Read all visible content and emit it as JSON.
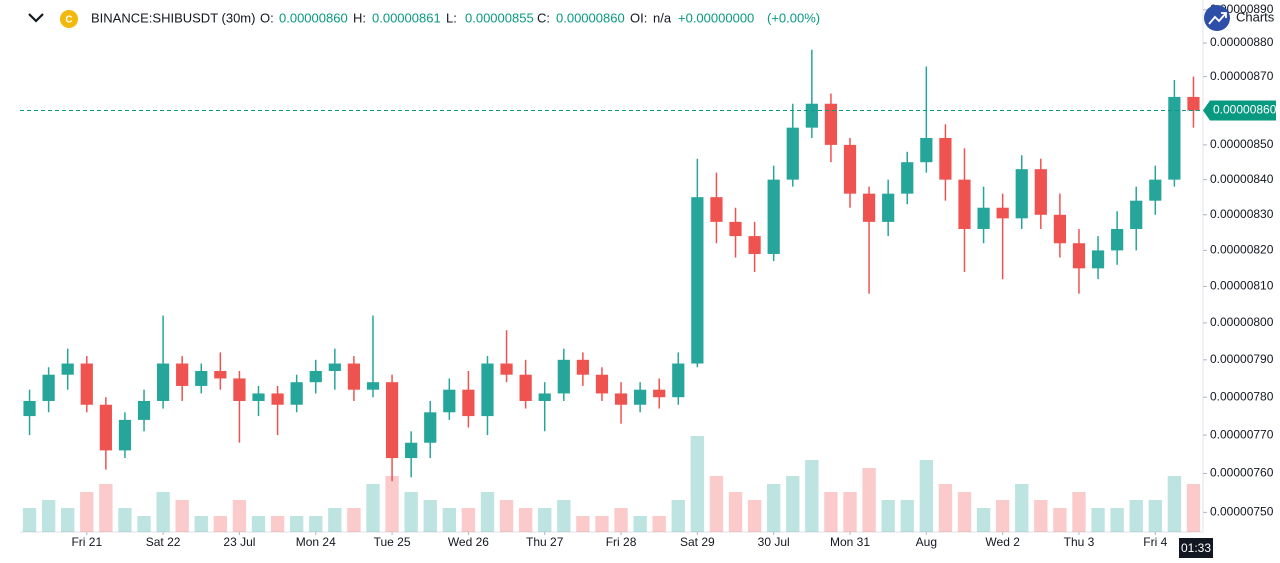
{
  "header": {
    "symbol": "BINANCE:SHIBUSDT (30m)",
    "fields": [
      {
        "key": "O:",
        "value": "0.00000860"
      },
      {
        "key": "H:",
        "value": "0.00000861"
      },
      {
        "key": "L:",
        "value": "0.00000855"
      },
      {
        "key": "C:",
        "value": "0.00000860"
      }
    ],
    "oi_label": "OI:",
    "oi": "n/a",
    "change": "+0.00000000",
    "change_pct": "(+0.00%)",
    "brand": "Charts",
    "time": "01:33"
  },
  "chart_data": {
    "type": "candlestick",
    "log_scale": true,
    "up_color": "#26a69a",
    "down_color": "#ef5350",
    "categories": [
      null,
      null,
      null,
      "Fri 21",
      null,
      null,
      null,
      "Sat 22",
      null,
      null,
      null,
      "23 Jul",
      null,
      null,
      null,
      "Mon 24",
      null,
      null,
      null,
      "Tue 25",
      null,
      null,
      null,
      "Wed 26",
      null,
      null,
      null,
      "Thu 27",
      null,
      null,
      null,
      "Fri 28",
      null,
      null,
      null,
      "Sat 29",
      null,
      null,
      null,
      "30 Jul",
      null,
      null,
      null,
      "Mon 31",
      null,
      null,
      null,
      "Aug",
      null,
      null,
      null,
      "Wed 2",
      null,
      null,
      null,
      "Thu 3",
      null,
      null,
      null,
      "Fri 4",
      null,
      null
    ],
    "ohlc": [
      [
        7.75e-06,
        7.82e-06,
        7.7e-06,
        7.79e-06
      ],
      [
        7.79e-06,
        7.88e-06,
        7.76e-06,
        7.86e-06
      ],
      [
        7.86e-06,
        7.93e-06,
        7.82e-06,
        7.89e-06
      ],
      [
        7.89e-06,
        7.91e-06,
        7.76e-06,
        7.78e-06
      ],
      [
        7.78e-06,
        7.8e-06,
        7.61e-06,
        7.66e-06
      ],
      [
        7.66e-06,
        7.76e-06,
        7.64e-06,
        7.74e-06
      ],
      [
        7.74e-06,
        7.82e-06,
        7.71e-06,
        7.79e-06
      ],
      [
        7.79e-06,
        8.02e-06,
        7.77e-06,
        7.89e-06
      ],
      [
        7.89e-06,
        7.91e-06,
        7.79e-06,
        7.83e-06
      ],
      [
        7.83e-06,
        7.89e-06,
        7.81e-06,
        7.87e-06
      ],
      [
        7.87e-06,
        7.92e-06,
        7.82e-06,
        7.85e-06
      ],
      [
        7.85e-06,
        7.87e-06,
        7.68e-06,
        7.79e-06
      ],
      [
        7.79e-06,
        7.83e-06,
        7.75e-06,
        7.81e-06
      ],
      [
        7.81e-06,
        7.83e-06,
        7.7e-06,
        7.78e-06
      ],
      [
        7.78e-06,
        7.86e-06,
        7.76e-06,
        7.84e-06
      ],
      [
        7.84e-06,
        7.9e-06,
        7.81e-06,
        7.87e-06
      ],
      [
        7.87e-06,
        7.93e-06,
        7.82e-06,
        7.89e-06
      ],
      [
        7.89e-06,
        7.91e-06,
        7.79e-06,
        7.82e-06
      ],
      [
        7.82e-06,
        8.02e-06,
        7.8e-06,
        7.84e-06
      ],
      [
        7.84e-06,
        7.86e-06,
        7.58e-06,
        7.64e-06
      ],
      [
        7.64e-06,
        7.71e-06,
        7.59e-06,
        7.68e-06
      ],
      [
        7.68e-06,
        7.79e-06,
        7.64e-06,
        7.76e-06
      ],
      [
        7.76e-06,
        7.85e-06,
        7.74e-06,
        7.82e-06
      ],
      [
        7.82e-06,
        7.87e-06,
        7.72e-06,
        7.75e-06
      ],
      [
        7.75e-06,
        7.91e-06,
        7.7e-06,
        7.89e-06
      ],
      [
        7.89e-06,
        7.98e-06,
        7.84e-06,
        7.86e-06
      ],
      [
        7.86e-06,
        7.9e-06,
        7.77e-06,
        7.79e-06
      ],
      [
        7.79e-06,
        7.84e-06,
        7.71e-06,
        7.81e-06
      ],
      [
        7.81e-06,
        7.93e-06,
        7.79e-06,
        7.9e-06
      ],
      [
        7.9e-06,
        7.92e-06,
        7.83e-06,
        7.86e-06
      ],
      [
        7.86e-06,
        7.88e-06,
        7.79e-06,
        7.81e-06
      ],
      [
        7.81e-06,
        7.84e-06,
        7.73e-06,
        7.78e-06
      ],
      [
        7.78e-06,
        7.84e-06,
        7.76e-06,
        7.82e-06
      ],
      [
        7.82e-06,
        7.85e-06,
        7.77e-06,
        7.8e-06
      ],
      [
        7.8e-06,
        7.92e-06,
        7.78e-06,
        7.89e-06
      ],
      [
        7.89e-06,
        8.46e-06,
        7.88e-06,
        8.35e-06
      ],
      [
        8.35e-06,
        8.42e-06,
        8.22e-06,
        8.28e-06
      ],
      [
        8.28e-06,
        8.32e-06,
        8.18e-06,
        8.24e-06
      ],
      [
        8.24e-06,
        8.28e-06,
        8.14e-06,
        8.19e-06
      ],
      [
        8.19e-06,
        8.44e-06,
        8.17e-06,
        8.4e-06
      ],
      [
        8.4e-06,
        8.62e-06,
        8.38e-06,
        8.55e-06
      ],
      [
        8.55e-06,
        8.78e-06,
        8.52e-06,
        8.62e-06
      ],
      [
        8.62e-06,
        8.65e-06,
        8.45e-06,
        8.5e-06
      ],
      [
        8.5e-06,
        8.52e-06,
        8.32e-06,
        8.36e-06
      ],
      [
        8.36e-06,
        8.38e-06,
        8.08e-06,
        8.28e-06
      ],
      [
        8.28e-06,
        8.4e-06,
        8.24e-06,
        8.36e-06
      ],
      [
        8.36e-06,
        8.48e-06,
        8.33e-06,
        8.45e-06
      ],
      [
        8.45e-06,
        8.73e-06,
        8.42e-06,
        8.52e-06
      ],
      [
        8.52e-06,
        8.56e-06,
        8.34e-06,
        8.4e-06
      ],
      [
        8.4e-06,
        8.49e-06,
        8.14e-06,
        8.26e-06
      ],
      [
        8.26e-06,
        8.38e-06,
        8.22e-06,
        8.32e-06
      ],
      [
        8.32e-06,
        8.36e-06,
        8.12e-06,
        8.29e-06
      ],
      [
        8.29e-06,
        8.47e-06,
        8.26e-06,
        8.43e-06
      ],
      [
        8.43e-06,
        8.46e-06,
        8.26e-06,
        8.3e-06
      ],
      [
        8.3e-06,
        8.36e-06,
        8.18e-06,
        8.22e-06
      ],
      [
        8.22e-06,
        8.26e-06,
        8.08e-06,
        8.15e-06
      ],
      [
        8.15e-06,
        8.24e-06,
        8.12e-06,
        8.2e-06
      ],
      [
        8.2e-06,
        8.31e-06,
        8.16e-06,
        8.26e-06
      ],
      [
        8.26e-06,
        8.38e-06,
        8.2e-06,
        8.34e-06
      ],
      [
        8.34e-06,
        8.44e-06,
        8.3e-06,
        8.4e-06
      ],
      [
        8.4e-06,
        8.69e-06,
        8.38e-06,
        8.64e-06
      ],
      [
        8.64e-06,
        8.7e-06,
        8.55e-06,
        8.6e-06
      ]
    ],
    "volume": [
      3,
      4,
      3,
      5,
      6,
      3,
      2,
      5,
      4,
      2,
      2,
      4,
      2,
      2,
      2,
      2,
      3,
      3,
      6,
      7,
      5,
      4,
      3,
      3,
      5,
      4,
      3,
      3,
      4,
      2,
      2,
      3,
      2,
      2,
      4,
      12,
      7,
      5,
      4,
      6,
      7,
      9,
      5,
      5,
      8,
      4,
      4,
      9,
      6,
      5,
      3,
      4,
      6,
      4,
      3,
      5,
      3,
      3,
      4,
      4,
      7,
      6
    ],
    "vlim": [
      0,
      14
    ],
    "ylim": [
      7.45e-06,
      8.93e-06
    ],
    "yticks": [
      {
        "value": 8.9e-06,
        "label": "0.00000890"
      },
      {
        "value": 8.8e-06,
        "label": "0.00000880"
      },
      {
        "value": 8.7e-06,
        "label": "0.00000870"
      },
      {
        "value": 8.6e-06,
        "label": "0.00000860"
      },
      {
        "value": 8.5e-06,
        "label": "0.00000850"
      },
      {
        "value": 8.4e-06,
        "label": "0.00000840"
      },
      {
        "value": 8.3e-06,
        "label": "0.00000830"
      },
      {
        "value": 8.2e-06,
        "label": "0.00000820"
      },
      {
        "value": 8.1e-06,
        "label": "0.00000810"
      },
      {
        "value": 8e-06,
        "label": "0.00000800"
      },
      {
        "value": 7.9e-06,
        "label": "0.00000790"
      },
      {
        "value": 7.8e-06,
        "label": "0.00000780"
      },
      {
        "value": 7.7e-06,
        "label": "0.00000770"
      },
      {
        "value": 7.6e-06,
        "label": "0.00000760"
      },
      {
        "value": 7.5e-06,
        "label": "0.00000750"
      }
    ],
    "last_price": {
      "value": 8.6e-06,
      "label": "0.00000860"
    }
  }
}
